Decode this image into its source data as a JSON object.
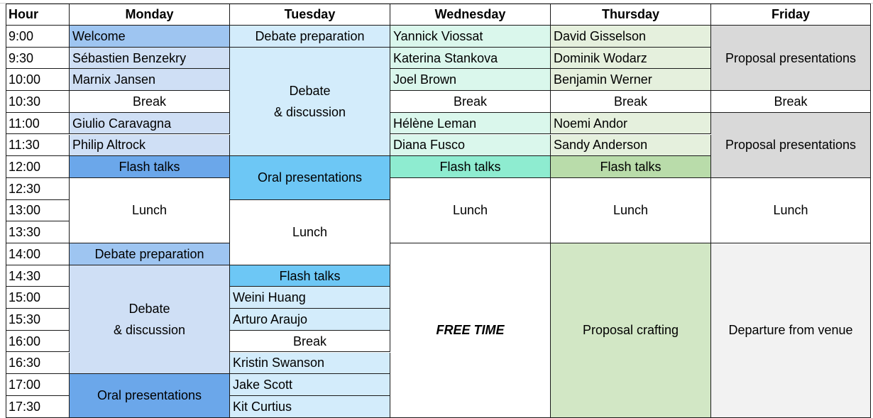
{
  "colors": {
    "white": "#ffffff",
    "monday_light": "#cfdff5",
    "monday_mid": "#9ec5f1",
    "monday_strong": "#6ba7ea",
    "tuesday_light": "#d3ecfb",
    "tuesday_strong": "#6dc7f5",
    "wed_light": "#daf7ec",
    "wed_strong": "#8eecd0",
    "thu_light": "#e5f0dd",
    "thu_strong": "#b9dcaa",
    "thu_craft": "#d2e7c5",
    "fri_grey": "#d9d9d9",
    "fri_light": "#f2f2f2"
  },
  "headers": [
    "Hour",
    "Monday",
    "Tuesday",
    "Wednesday",
    "Thursday",
    "Friday"
  ],
  "hours": [
    "9:00",
    "9:30",
    "10:00",
    "10:30",
    "11:00",
    "11:30",
    "12:00",
    "12:30",
    "13:00",
    "13:30",
    "14:00",
    "14:30",
    "15:00",
    "15:30",
    "16:00",
    "16:30",
    "17:00",
    "17:30"
  ],
  "schedule": {
    "monday": [
      {
        "text": "Welcome",
        "start": 0,
        "span": 1,
        "align": "left",
        "color": "monday_mid"
      },
      {
        "text": "Sébastien Benzekry",
        "start": 1,
        "span": 1,
        "align": "left",
        "color": "monday_light"
      },
      {
        "text": "Marnix Jansen",
        "start": 2,
        "span": 1,
        "align": "left",
        "color": "monday_light"
      },
      {
        "text": "Break",
        "start": 3,
        "span": 1,
        "align": "center",
        "color": "white"
      },
      {
        "text": "Giulio Caravagna",
        "start": 4,
        "span": 1,
        "align": "left",
        "color": "monday_light"
      },
      {
        "text": "Philip Altrock",
        "start": 5,
        "span": 1,
        "align": "left",
        "color": "monday_light"
      },
      {
        "text": "Flash talks",
        "start": 6,
        "span": 1,
        "align": "center",
        "color": "monday_strong"
      },
      {
        "text": "Lunch",
        "start": 7,
        "span": 3,
        "align": "center",
        "color": "white"
      },
      {
        "text": "Debate preparation",
        "start": 10,
        "span": 1,
        "align": "center",
        "color": "monday_mid"
      },
      {
        "text": "Debate\n & discussion",
        "start": 11,
        "span": 5,
        "align": "center",
        "color": "monday_light"
      },
      {
        "text": "Oral presentations",
        "start": 16,
        "span": 2,
        "align": "center",
        "color": "monday_strong"
      }
    ],
    "tuesday": [
      {
        "text": "Debate preparation",
        "start": 0,
        "span": 1,
        "align": "center",
        "color": "tuesday_light"
      },
      {
        "text": "Debate\n & discussion",
        "start": 1,
        "span": 5,
        "align": "center",
        "color": "tuesday_light"
      },
      {
        "text": "Oral presentations",
        "start": 6,
        "span": 2,
        "align": "center",
        "color": "tuesday_strong"
      },
      {
        "text": "Lunch",
        "start": 8,
        "span": 3,
        "align": "center",
        "color": "white"
      },
      {
        "text": "Flash talks",
        "start": 11,
        "span": 1,
        "align": "center",
        "color": "tuesday_strong"
      },
      {
        "text": "Weini Huang",
        "start": 12,
        "span": 1,
        "align": "left",
        "color": "tuesday_light"
      },
      {
        "text": "Arturo Araujo",
        "start": 13,
        "span": 1,
        "align": "left",
        "color": "tuesday_light"
      },
      {
        "text": "Break",
        "start": 14,
        "span": 1,
        "align": "center",
        "color": "white"
      },
      {
        "text": "Kristin Swanson",
        "start": 15,
        "span": 1,
        "align": "left",
        "color": "tuesday_light"
      },
      {
        "text": "Jake Scott",
        "start": 16,
        "span": 1,
        "align": "left",
        "color": "tuesday_light"
      },
      {
        "text": "Kit Curtius",
        "start": 17,
        "span": 1,
        "align": "left",
        "color": "tuesday_light"
      }
    ],
    "wednesday": [
      {
        "text": "Yannick Viossat",
        "start": 0,
        "span": 1,
        "align": "left",
        "color": "wed_light"
      },
      {
        "text": "Katerina Stankova",
        "start": 1,
        "span": 1,
        "align": "left",
        "color": "wed_light"
      },
      {
        "text": "Joel Brown",
        "start": 2,
        "span": 1,
        "align": "left",
        "color": "wed_light"
      },
      {
        "text": "Break",
        "start": 3,
        "span": 1,
        "align": "center",
        "color": "white"
      },
      {
        "text": "Hélène Leman",
        "start": 4,
        "span": 1,
        "align": "left",
        "color": "wed_light"
      },
      {
        "text": "Diana Fusco",
        "start": 5,
        "span": 1,
        "align": "left",
        "color": "wed_light"
      },
      {
        "text": "Flash talks",
        "start": 6,
        "span": 1,
        "align": "center",
        "color": "wed_strong"
      },
      {
        "text": "Lunch",
        "start": 7,
        "span": 3,
        "align": "center",
        "color": "white"
      },
      {
        "text": "FREE TIME",
        "start": 10,
        "span": 8,
        "align": "center",
        "color": "white",
        "style": "bold-italic"
      }
    ],
    "thursday": [
      {
        "text": "David Gisselson",
        "start": 0,
        "span": 1,
        "align": "left",
        "color": "thu_light"
      },
      {
        "text": "Dominik Wodarz",
        "start": 1,
        "span": 1,
        "align": "left",
        "color": "thu_light"
      },
      {
        "text": "Benjamin Werner",
        "start": 2,
        "span": 1,
        "align": "left",
        "color": "thu_light"
      },
      {
        "text": "Break",
        "start": 3,
        "span": 1,
        "align": "center",
        "color": "white"
      },
      {
        "text": "Noemi Andor",
        "start": 4,
        "span": 1,
        "align": "left",
        "color": "thu_light"
      },
      {
        "text": "Sandy Anderson",
        "start": 5,
        "span": 1,
        "align": "left",
        "color": "thu_light"
      },
      {
        "text": "Flash talks",
        "start": 6,
        "span": 1,
        "align": "center",
        "color": "thu_strong"
      },
      {
        "text": "Lunch",
        "start": 7,
        "span": 3,
        "align": "center",
        "color": "white"
      },
      {
        "text": "Proposal crafting",
        "start": 10,
        "span": 8,
        "align": "center",
        "color": "thu_craft"
      }
    ],
    "friday": [
      {
        "text": "Proposal presentations",
        "start": 0,
        "span": 3,
        "align": "center",
        "color": "fri_grey"
      },
      {
        "text": "Break",
        "start": 3,
        "span": 1,
        "align": "center",
        "color": "white"
      },
      {
        "text": "Proposal presentations",
        "start": 4,
        "span": 3,
        "align": "center",
        "color": "fri_grey"
      },
      {
        "text": "Lunch",
        "start": 7,
        "span": 3,
        "align": "center",
        "color": "white"
      },
      {
        "text": "Departure from venue",
        "start": 10,
        "span": 8,
        "align": "center",
        "color": "fri_light"
      }
    ]
  }
}
